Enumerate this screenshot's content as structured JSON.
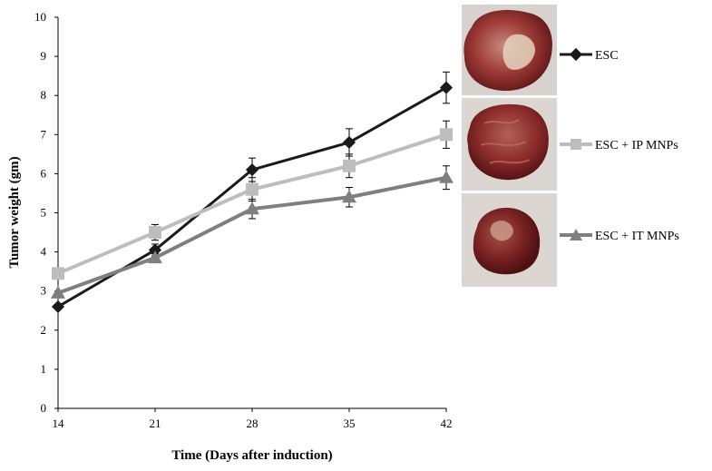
{
  "chart_data": {
    "type": "line",
    "title": "",
    "xlabel": "Time (Days after induction)",
    "ylabel": "Tumor  weight  (gm)",
    "x": [
      14,
      21,
      28,
      35,
      42
    ],
    "x_tick_labels": [
      "14",
      "21",
      "28",
      "35",
      "42"
    ],
    "ylim": [
      0,
      10
    ],
    "y_tick_labels": [
      "0",
      "1",
      "2",
      "3",
      "4",
      "5",
      "6",
      "7",
      "8",
      "9",
      "10"
    ],
    "grid": false,
    "legend_position": "right",
    "series": [
      {
        "name": "ESC",
        "values": [
          2.6,
          4.05,
          6.1,
          6.8,
          8.2
        ],
        "errors": [
          0.0,
          0.15,
          0.3,
          0.35,
          0.4
        ],
        "color": "#1a1a1a",
        "marker": "diamond"
      },
      {
        "name": "ESC + IP MNPs",
        "values": [
          3.45,
          4.5,
          5.6,
          6.2,
          7.0
        ],
        "errors": [
          0.0,
          0.2,
          0.3,
          0.3,
          0.35
        ],
        "color": "#bdbdbd",
        "marker": "square"
      },
      {
        "name": "ESC + IT MNPs",
        "values": [
          2.95,
          3.85,
          5.1,
          5.4,
          5.9
        ],
        "errors": [
          0.0,
          0.1,
          0.25,
          0.25,
          0.3
        ],
        "color": "#7f7f7f",
        "marker": "triangle"
      }
    ],
    "photo_colors": {
      "background": "#dcd6d2",
      "tissue_dark": "#6e1a1c",
      "tissue_mid": "#9c3a36",
      "tissue_light": "#c98a7c",
      "highlight": "#e8d9c8"
    }
  }
}
